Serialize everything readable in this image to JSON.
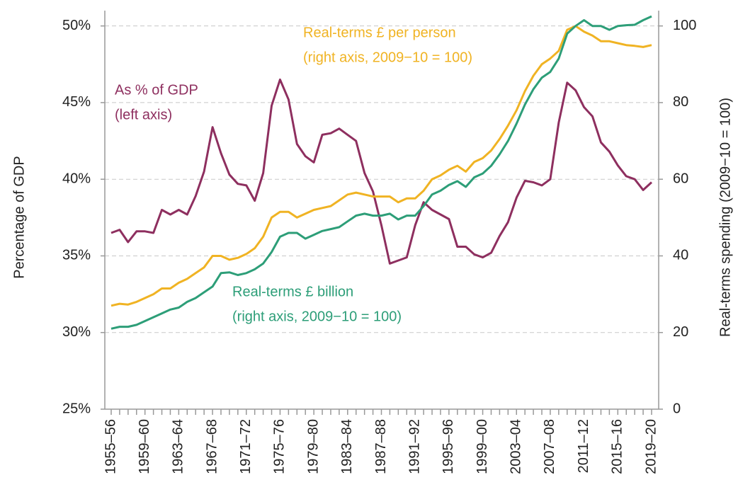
{
  "chart_data": {
    "type": "line",
    "y_label": "Percentage of GDP",
    "y2_label": "Real-terms spending (2009−10 = 100)",
    "categories": [
      "1955–56",
      null,
      null,
      null,
      "1959–60",
      null,
      null,
      null,
      "1963–64",
      null,
      null,
      null,
      "1967–68",
      null,
      null,
      null,
      "1971–72",
      null,
      null,
      null,
      "1975–76",
      null,
      null,
      null,
      "1979–80",
      null,
      null,
      null,
      "1983–84",
      null,
      null,
      null,
      "1987–88",
      null,
      null,
      null,
      "1991–92",
      null,
      null,
      null,
      "1995–96",
      null,
      null,
      null,
      "1999–00",
      null,
      null,
      null,
      "2003–04",
      null,
      null,
      null,
      "2007–08",
      null,
      null,
      null,
      "2011–12",
      null,
      null,
      null,
      "2015–16",
      null,
      null,
      null,
      "2019–20"
    ],
    "ylim": [
      25,
      51
    ],
    "yticks": [
      {
        "value": 25,
        "label": "25%"
      },
      {
        "value": 30,
        "label": "30%"
      },
      {
        "value": 35,
        "label": "35%"
      },
      {
        "value": 40,
        "label": "40%"
      },
      {
        "value": 45,
        "label": "45%"
      },
      {
        "value": 50,
        "label": "50%"
      }
    ],
    "y2lim": [
      0,
      104
    ],
    "y2ticks": [
      0,
      20,
      40,
      60,
      80,
      100
    ],
    "grid": true,
    "series": [
      {
        "name": "As % of GDP",
        "detail": "(left axis)",
        "color": "#8e2f5f",
        "axis": "y",
        "values": [
          36.5,
          36.7,
          35.9,
          36.6,
          36.6,
          36.5,
          38.0,
          37.7,
          38.0,
          37.7,
          38.9,
          40.5,
          43.4,
          41.7,
          40.3,
          39.7,
          39.6,
          38.6,
          40.4,
          44.8,
          46.5,
          45.2,
          42.3,
          41.5,
          41.1,
          42.9,
          43.0,
          43.3,
          42.9,
          42.5,
          40.4,
          39.2,
          37.0,
          34.5,
          34.7,
          34.9,
          37.0,
          38.5,
          38.0,
          37.7,
          37.4,
          35.6,
          35.6,
          35.1,
          34.9,
          35.2,
          36.3,
          37.2,
          38.8,
          39.9,
          39.8,
          39.6,
          40.0,
          43.7,
          46.3,
          45.8,
          44.7,
          44.1,
          42.4,
          41.8,
          40.9,
          40.2,
          40.0,
          39.3,
          39.8
        ]
      },
      {
        "name": "Real-terms £ per person",
        "detail": "(right axis, 2009−10 = 100)",
        "color": "#f0b323",
        "axis": "y2",
        "values": [
          27,
          27.5,
          27.3,
          28,
          29,
          30,
          31.5,
          31.5,
          33,
          34,
          35.5,
          37,
          40,
          40,
          39,
          39.5,
          40.5,
          42,
          45,
          50,
          51.5,
          51.5,
          50,
          51,
          52,
          52.5,
          53,
          54.5,
          56,
          56.5,
          56,
          55.5,
          55.5,
          55.5,
          54,
          55,
          55,
          57,
          60,
          61,
          62.5,
          63.5,
          62,
          64.5,
          65.5,
          67.5,
          70.5,
          74,
          78,
          83,
          87,
          90,
          91.5,
          93.5,
          99,
          100,
          98.5,
          97.5,
          96,
          96,
          95.5,
          95,
          94.8,
          94.5,
          95
        ]
      },
      {
        "name": "Real-terms £ billion",
        "detail": "(right axis, 2009−10 = 100)",
        "color": "#2d9e78",
        "axis": "y2",
        "values": [
          21,
          21.5,
          21.5,
          22,
          23,
          24,
          25,
          26,
          26.5,
          28,
          29,
          30.5,
          32,
          35.5,
          35.7,
          35,
          35.5,
          36.5,
          38,
          41,
          45,
          46,
          46,
          44.5,
          45.5,
          46.5,
          47,
          47.5,
          49,
          50.5,
          51,
          50.5,
          50.5,
          51,
          49.5,
          50.5,
          50.5,
          53,
          56,
          57,
          58.5,
          59.5,
          58,
          60.5,
          61.5,
          63.5,
          66.5,
          70,
          74.5,
          79.5,
          83.5,
          86.5,
          88,
          91.5,
          98,
          100,
          101.5,
          100,
          100,
          99,
          100,
          100.2,
          100.3,
          101.5,
          102.5
        ]
      }
    ]
  }
}
